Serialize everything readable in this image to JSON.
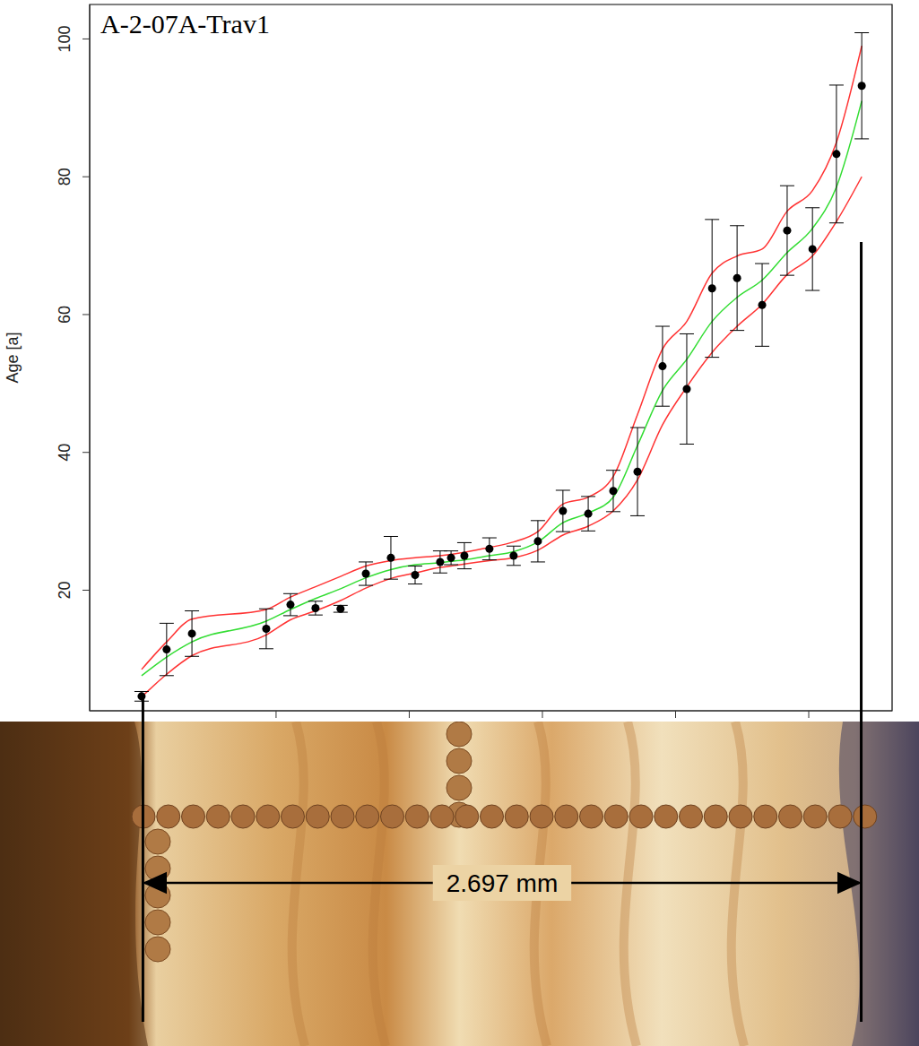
{
  "chart_data": {
    "type": "scatter",
    "title": "A-2-07A-Trav1",
    "y_label": "Age [a]",
    "xlim": [
      -0.2,
      2.813
    ],
    "xticks": [
      0.5,
      1,
      1.5,
      2,
      2.5
    ],
    "ylim": [
      2.5,
      105
    ],
    "yticks": [
      20,
      40,
      60,
      80,
      100
    ],
    "tick_labels": "y",
    "grid": false,
    "marker": "circle",
    "color": "#000000",
    "x": [
      -0.005,
      0.089,
      0.184,
      0.463,
      0.554,
      0.648,
      0.742,
      0.837,
      0.931,
      1.022,
      1.116,
      1.157,
      1.207,
      1.301,
      1.392,
      1.483,
      1.577,
      1.672,
      1.766,
      1.857,
      1.951,
      2.042,
      2.137,
      2.231,
      2.325,
      2.419,
      2.514,
      2.604,
      2.699
    ],
    "values": [
      4.6,
      11.4,
      13.7,
      14.4,
      17.9,
      17.4,
      17.3,
      22.4,
      24.7,
      22.2,
      24.1,
      24.7,
      25.0,
      26.0,
      25.0,
      27.1,
      31.5,
      31.1,
      34.4,
      37.2,
      52.5,
      49.2,
      63.8,
      65.3,
      61.4,
      72.2,
      69.5,
      83.3,
      93.2
    ],
    "errors": [
      0.7,
      3.8,
      3.3,
      2.9,
      1.6,
      1.0,
      0.5,
      1.7,
      3.1,
      1.3,
      1.6,
      1.0,
      1.9,
      1.6,
      1.4,
      3.0,
      3.0,
      2.5,
      3.0,
      6.4,
      5.8,
      8.0,
      10.0,
      7.6,
      6.0,
      6.5,
      6.0,
      10.0,
      7.7
    ],
    "fit": {
      "color": "#33dd33",
      "band_color": "#ff3333",
      "values": [
        7.6,
        10.3,
        12.5,
        15.5,
        17.2,
        18.8,
        20.2,
        21.8,
        23.0,
        23.7,
        24.0,
        24.2,
        24.4,
        25.0,
        25.6,
        27.0,
        29.8,
        31.2,
        33.5,
        41,
        49,
        53.5,
        59,
        62.5,
        65,
        69,
        72.5,
        78.5,
        91
      ],
      "lower": [
        4.5,
        7.8,
        10.5,
        13.5,
        15.7,
        17.0,
        18.5,
        20.3,
        21.7,
        22.5,
        23.3,
        23.5,
        23.8,
        24.3,
        24.7,
        25.8,
        28.0,
        29.3,
        31.5,
        36,
        44,
        49.5,
        54.5,
        58.3,
        61.5,
        65.8,
        68.5,
        73.5,
        80
      ],
      "upper": [
        8.5,
        12.5,
        15.8,
        17.2,
        19,
        20.5,
        22,
        23.5,
        24.3,
        24.7,
        25,
        25.2,
        25.5,
        26.2,
        27,
        28.5,
        32.5,
        33.5,
        36.5,
        45.5,
        55,
        59,
        66,
        68.5,
        69.5,
        75,
        78,
        85,
        99
      ]
    },
    "annotation": {
      "text": "2.697 mm",
      "x": [
        0,
        2.697
      ]
    }
  }
}
